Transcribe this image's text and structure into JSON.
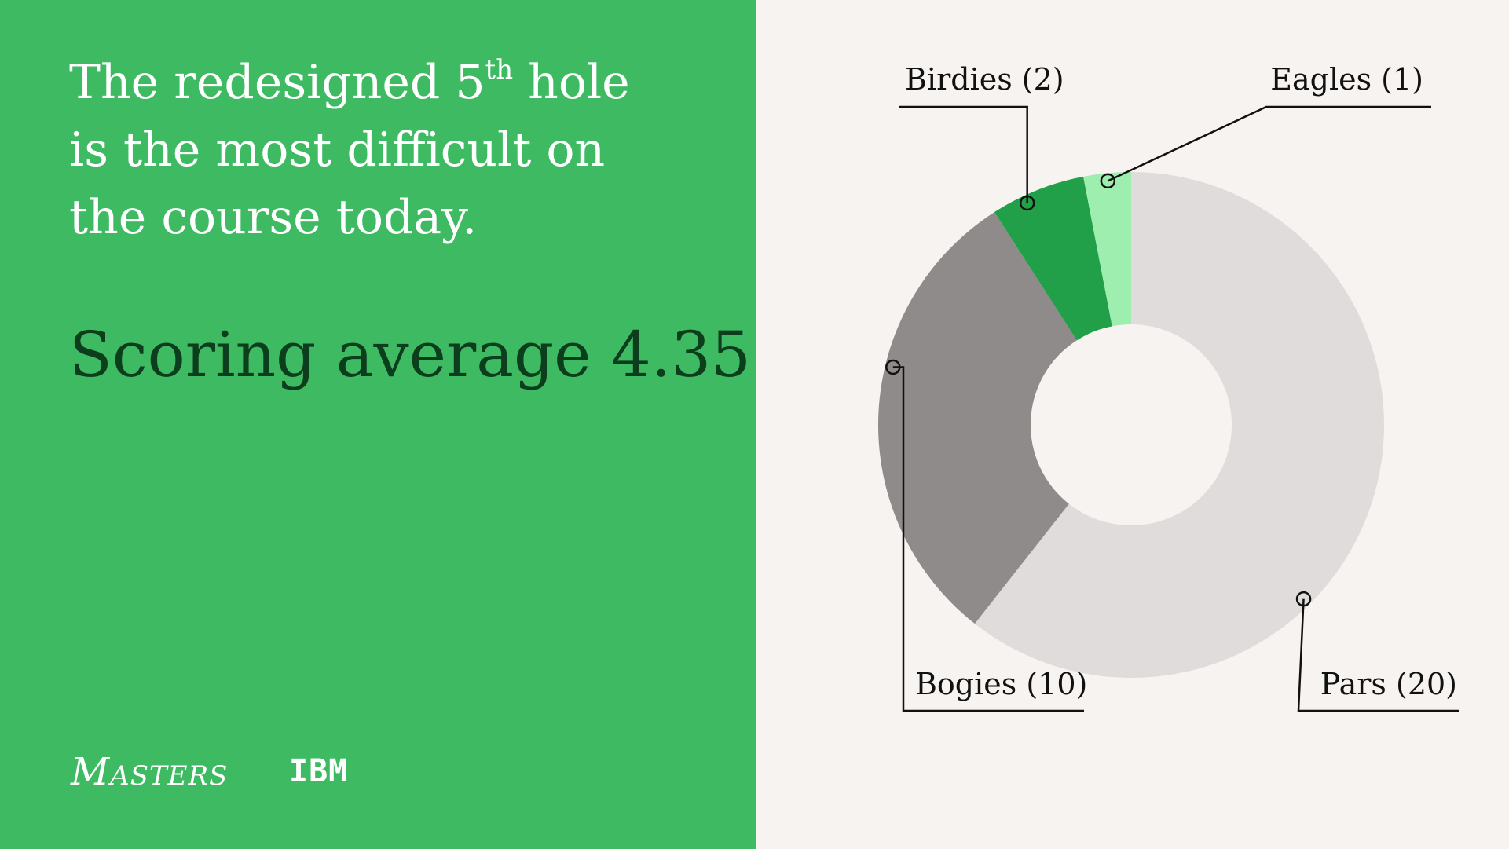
{
  "headline": {
    "line1_prefix": "The redesigned 5",
    "line1_sup": "th",
    "line1_suffix": " hole",
    "line2": "is the most difficult on",
    "line3": "the course today."
  },
  "score_text": "Scoring average 4.35",
  "logos": {
    "masters": {
      "first": "M",
      "rest": "asters"
    },
    "ibm": "IBM"
  },
  "colors": {
    "panel_green": "#3ebb62",
    "background": "#f6f3f0",
    "score_text": "#0c3d1c",
    "pars": "#e0dcdb",
    "bogies": "#8f8b8a",
    "birdies": "#22a049",
    "eagles": "#9deeaf"
  },
  "chart_data": {
    "type": "donut",
    "title": "",
    "order": "clockwise from top",
    "series": [
      {
        "label": "Pars (20)",
        "name": "Pars",
        "value": 20,
        "color": "#e0dcdb"
      },
      {
        "label": "Bogies (10)",
        "name": "Bogies",
        "value": 10,
        "color": "#8f8b8a"
      },
      {
        "label": "Birdies (2)",
        "name": "Birdies",
        "value": 2,
        "color": "#22a049"
      },
      {
        "label": "Eagles (1)",
        "name": "Eagles",
        "value": 1,
        "color": "#9deeaf"
      }
    ]
  }
}
